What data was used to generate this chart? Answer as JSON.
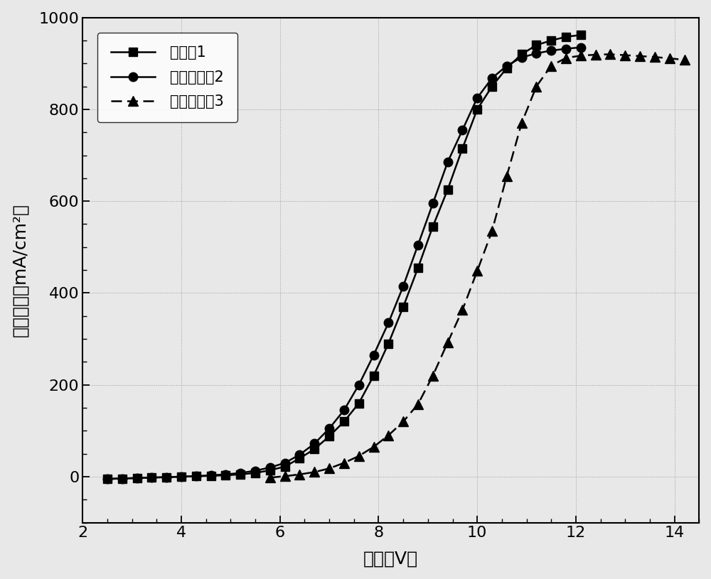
{
  "xlabel": "电压（V）",
  "ylabel": "电流密度（mA/cm²）",
  "xlim": [
    2.5,
    14.5
  ],
  "ylim": [
    -100,
    1000
  ],
  "xticks": [
    2,
    4,
    6,
    8,
    10,
    12,
    14
  ],
  "yticks": [
    0,
    200,
    400,
    600,
    800,
    1000
  ],
  "background_color": "#f0f0f0",
  "series": [
    {
      "label": "实施例1",
      "marker": "s",
      "linestyle": "-",
      "x": [
        2.5,
        2.8,
        3.1,
        3.4,
        3.7,
        4.0,
        4.3,
        4.6,
        4.9,
        5.2,
        5.5,
        5.8,
        6.1,
        6.4,
        6.7,
        7.0,
        7.3,
        7.6,
        7.9,
        8.2,
        8.5,
        8.8,
        9.1,
        9.4,
        9.7,
        10.0,
        10.3,
        10.6,
        10.9,
        11.2,
        11.5,
        11.8,
        12.1
      ],
      "y": [
        -5,
        -4,
        -3,
        -2,
        -1,
        0,
        1,
        2,
        3,
        5,
        8,
        14,
        22,
        40,
        60,
        88,
        120,
        160,
        220,
        290,
        370,
        455,
        545,
        625,
        715,
        800,
        850,
        890,
        920,
        940,
        950,
        958,
        962
      ]
    },
    {
      "label": "对比实施例2",
      "marker": "o",
      "linestyle": "-",
      "x": [
        2.5,
        2.8,
        3.1,
        3.4,
        3.7,
        4.0,
        4.3,
        4.6,
        4.9,
        5.2,
        5.5,
        5.8,
        6.1,
        6.4,
        6.7,
        7.0,
        7.3,
        7.6,
        7.9,
        8.2,
        8.5,
        8.8,
        9.1,
        9.4,
        9.7,
        10.0,
        10.3,
        10.6,
        10.9,
        11.2,
        11.5,
        11.8,
        12.1
      ],
      "y": [
        -5,
        -4,
        -3,
        -2,
        -1,
        0,
        1,
        3,
        5,
        8,
        13,
        20,
        30,
        48,
        72,
        105,
        145,
        200,
        265,
        335,
        415,
        505,
        595,
        685,
        755,
        825,
        868,
        895,
        913,
        922,
        928,
        932,
        935
      ]
    },
    {
      "label": "对比实施例3",
      "marker": "^",
      "linestyle": "--",
      "x": [
        5.8,
        6.1,
        6.4,
        6.7,
        7.0,
        7.3,
        7.6,
        7.9,
        8.2,
        8.5,
        8.8,
        9.1,
        9.4,
        9.7,
        10.0,
        10.3,
        10.6,
        10.9,
        11.2,
        11.5,
        11.8,
        12.1,
        12.4,
        12.7,
        13.0,
        13.3,
        13.6,
        13.9,
        14.2
      ],
      "y": [
        -2,
        1,
        5,
        10,
        18,
        30,
        45,
        65,
        90,
        120,
        158,
        220,
        292,
        363,
        448,
        535,
        655,
        770,
        850,
        895,
        912,
        917,
        919,
        920,
        918,
        916,
        914,
        911,
        908
      ]
    }
  ]
}
